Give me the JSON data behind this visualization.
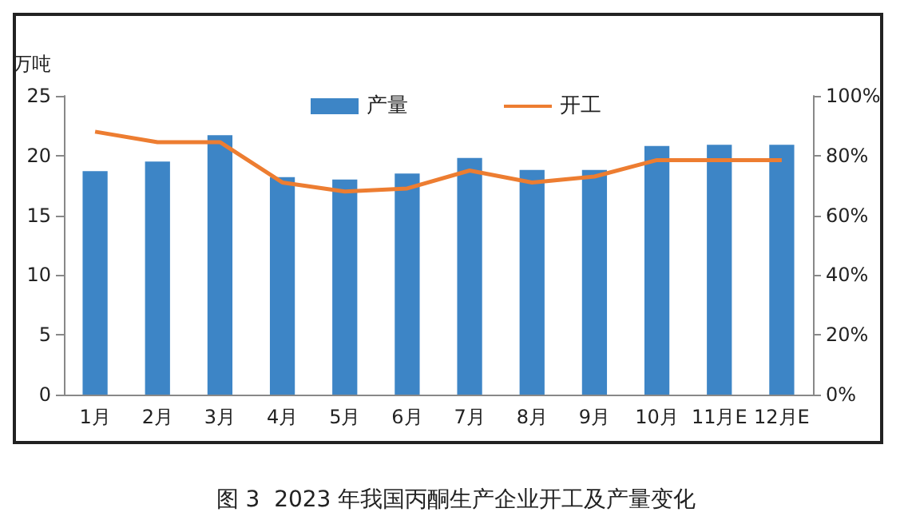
{
  "chart_data": {
    "type": "bar",
    "title": "图 3  2023 年我国丙酮生产企业开工及产量变化",
    "ylabel": "万吨",
    "categories": [
      "1月",
      "2月",
      "3月",
      "4月",
      "5月",
      "6月",
      "7月",
      "8月",
      "9月",
      "10月",
      "11月E",
      "12月E"
    ],
    "series": [
      {
        "name": "产量",
        "color": "#3d85c6",
        "values": [
          18.7,
          19.5,
          21.7,
          18.2,
          18.0,
          18.5,
          19.8,
          18.8,
          18.8,
          20.8,
          20.9,
          20.9
        ]
      },
      {
        "name": "开工",
        "type": "line",
        "axis": "y2",
        "color": "#ed7d31",
        "marker": "none",
        "values": [
          88,
          84.5,
          84.5,
          71,
          68,
          69,
          75,
          71,
          73,
          78.5,
          78.5,
          78.5
        ]
      }
    ],
    "ylim": [
      0,
      25
    ],
    "yticks": [
      0,
      5,
      10,
      15,
      20,
      25
    ],
    "y2lim": [
      0,
      100
    ],
    "y2ticks": [
      {
        "value": 0,
        "label": "0%"
      },
      {
        "value": 20,
        "label": "20%"
      },
      {
        "value": 40,
        "label": "40%"
      },
      {
        "value": 60,
        "label": "60%"
      },
      {
        "value": 80,
        "label": "80%"
      },
      {
        "value": 100,
        "label": "100%"
      }
    ],
    "grid": false,
    "legend": "top"
  }
}
